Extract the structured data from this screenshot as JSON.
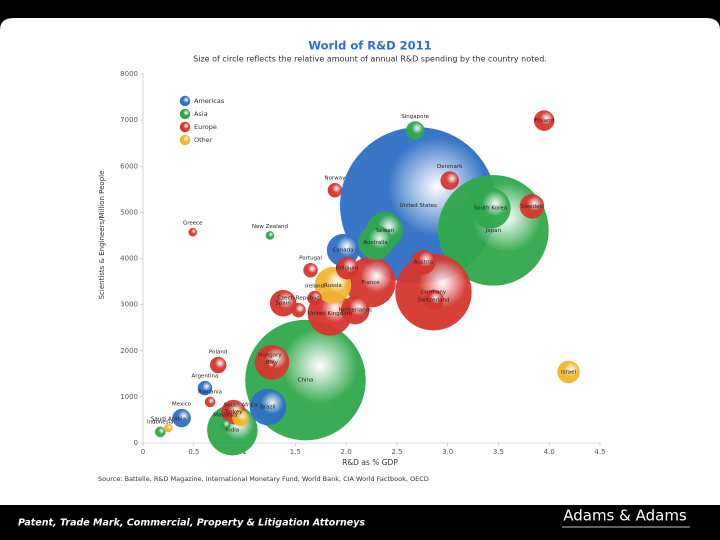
{
  "chart_data": {
    "type": "bubble",
    "title": "World of R&D 2011",
    "subtitle": "Size of circle reflects the relative amount of annual R&D spending by the country noted.",
    "xlabel": "R&D as % GDP",
    "ylabel": "Scientists & Engineers/Million People",
    "source": "Source: Battelle, R&D Magazine, International Monetary Fund, World Bank, CIA World Factbook, OECD",
    "xlim": [
      0,
      4.5
    ],
    "ylim": [
      0,
      8000
    ],
    "xticks": [
      0,
      0.5,
      1,
      1.5,
      {
        "value": 2,
        "label": "2.0"
      },
      2.5,
      {
        "value": 3,
        "label": "3.0"
      },
      3.5,
      {
        "value": 4,
        "label": "4.0"
      },
      4.5
    ],
    "yticks": [
      0,
      1000,
      2000,
      3000,
      4000,
      5000,
      6000,
      7000,
      8000
    ],
    "legend": "upper left",
    "series": [
      {
        "name": "Americas",
        "color": "#2f6fc4",
        "labels": [
          "United States",
          "Canada",
          "Brazil",
          "Argentina",
          "Mexico"
        ],
        "x": [
          2.71,
          1.97,
          1.23,
          0.61,
          0.38
        ],
        "values": [
          5150,
          4180,
          780,
          1190,
          540
        ],
        "sizes": [
          405,
          17,
          21.6,
          3.3,
          5.4
        ]
      },
      {
        "name": "Asia",
        "color": "#2fa84a",
        "labels": [
          "Japan",
          "China",
          "South Korea",
          "Singapore",
          "Taiwan",
          "Australia",
          "New Zealand",
          "India",
          "Malaysia",
          "Indonesia"
        ],
        "x": [
          3.45,
          1.6,
          3.42,
          2.68,
          2.38,
          2.29,
          1.25,
          0.88,
          0.81,
          0.17
        ],
        "values": [
          4610,
          1364,
          5090,
          6775,
          4610,
          4350,
          4500,
          280,
          390,
          240
        ],
        "sizes": [
          202,
          240,
          27,
          5.4,
          21.6,
          19.3,
          1.1,
          41.7,
          1.7,
          1.7
        ]
      },
      {
        "name": "Europe",
        "color": "#d6372f",
        "labels": [
          "Germany",
          "France",
          "United Kingdom",
          "Finland",
          "Denmark",
          "Sweden",
          "Norway",
          "Greece",
          "Austria",
          "Belgium",
          "Portugal",
          "Ireland",
          "Netherlands",
          "Switzerland",
          "Spain",
          "Czech Republic",
          "Italy",
          "Hungary",
          "Poland",
          "Turkey",
          "Romania"
        ],
        "x": [
          2.86,
          2.24,
          1.84,
          3.95,
          3.02,
          3.83,
          1.89,
          0.49,
          2.76,
          2.01,
          1.65,
          1.69,
          2.09,
          2.86,
          1.38,
          1.53,
          1.27,
          1.25,
          0.74,
          0.89,
          0.66
        ],
        "values": [
          3270,
          3485,
          2810,
          6990,
          5690,
          5130,
          5480,
          4570,
          3920,
          3790,
          3745,
          3140,
          2880,
          3100,
          3030,
          2880,
          1750,
          1690,
          1690,
          670,
          890
        ],
        "sizes": [
          96,
          41.7,
          32.3,
          6.7,
          5.4,
          9.6,
          3.3,
          1.1,
          9.6,
          8.1,
          3.3,
          3.3,
          13,
          6.7,
          11.3,
          3.3,
          19.3,
          1.7,
          4.3,
          9.6,
          1.7
        ]
      },
      {
        "name": "Other",
        "color": "#f2b530",
        "labels": [
          "Russia",
          "Israel",
          "South Africa",
          "Saudi Arabia"
        ],
        "x": [
          1.87,
          4.19,
          0.96,
          0.25
        ],
        "values": [
          3420,
          1540,
          540,
          325
        ],
        "sizes": [
          21.6,
          8.1,
          4.3,
          1.1
        ]
      }
    ]
  },
  "footer": {
    "tagline": "Patent, Trade Mark, Commercial, Property & Litigation Attorneys",
    "logo": "Adams & Adams"
  }
}
